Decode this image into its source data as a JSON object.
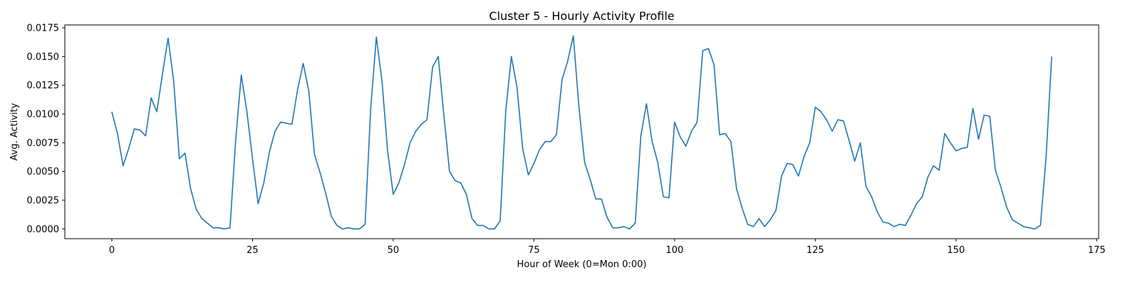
{
  "chart_data": {
    "type": "line",
    "title": "Cluster 5 - Hourly Activity Profile",
    "xlabel": "Hour of Week (0=Mon 0:00)",
    "ylabel": "Avg. Activity",
    "xlim": [
      -8.35,
      175.35
    ],
    "ylim": [
      -0.00085,
      0.01775
    ],
    "xticks": [
      0,
      25,
      50,
      75,
      100,
      125,
      150,
      175
    ],
    "xtick_labels": [
      "0",
      "25",
      "50",
      "75",
      "100",
      "125",
      "150",
      "175"
    ],
    "yticks": [
      0.0,
      0.0025,
      0.005,
      0.0075,
      0.01,
      0.0125,
      0.015,
      0.0175
    ],
    "ytick_labels": [
      "0.0000",
      "0.0025",
      "0.0050",
      "0.0075",
      "0.0100",
      "0.0125",
      "0.0150",
      "0.0175"
    ],
    "grid": false,
    "series": [
      {
        "color": "#1f77b4",
        "x_start": 0,
        "x_step": 1,
        "values": [
          0.0102,
          0.0083,
          0.0055,
          0.007,
          0.0087,
          0.0086,
          0.0081,
          0.0114,
          0.0102,
          0.0135,
          0.0166,
          0.0128,
          0.0061,
          0.0066,
          0.0035,
          0.0017,
          0.0009,
          0.0005,
          0.0001,
          0.0001,
          0.0,
          0.0001,
          0.0077,
          0.0134,
          0.0102,
          0.0061,
          0.0022,
          0.004,
          0.0067,
          0.0085,
          0.0093,
          0.0092,
          0.0091,
          0.0121,
          0.0144,
          0.012,
          0.0065,
          0.0049,
          0.0031,
          0.0011,
          0.0003,
          0.0,
          0.0001,
          0.0,
          0.0,
          0.0004,
          0.0105,
          0.0167,
          0.0129,
          0.0068,
          0.003,
          0.004,
          0.0056,
          0.0075,
          0.0085,
          0.0091,
          0.0095,
          0.0141,
          0.015,
          0.0099,
          0.005,
          0.0042,
          0.004,
          0.003,
          0.0009,
          0.0003,
          0.0003,
          0.0,
          0.0,
          0.0007,
          0.0103,
          0.015,
          0.0123,
          0.007,
          0.0047,
          0.0057,
          0.0069,
          0.0076,
          0.0076,
          0.0082,
          0.013,
          0.0146,
          0.0168,
          0.0106,
          0.0058,
          0.0043,
          0.0026,
          0.0026,
          0.001,
          0.0001,
          0.0001,
          0.0002,
          0.0,
          0.0005,
          0.0081,
          0.0109,
          0.0076,
          0.0058,
          0.0028,
          0.0027,
          0.0093,
          0.008,
          0.0072,
          0.0085,
          0.0093,
          0.0155,
          0.0157,
          0.0143,
          0.0082,
          0.0083,
          0.0076,
          0.0035,
          0.0018,
          0.0004,
          0.0002,
          0.0009,
          0.0002,
          0.0008,
          0.0016,
          0.0046,
          0.0057,
          0.0056,
          0.0046,
          0.0063,
          0.0075,
          0.0106,
          0.0102,
          0.0095,
          0.0085,
          0.0095,
          0.0094,
          0.0077,
          0.0059,
          0.0075,
          0.0037,
          0.0028,
          0.0015,
          0.0006,
          0.0005,
          0.0002,
          0.0004,
          0.0003,
          0.0012,
          0.0022,
          0.0028,
          0.0045,
          0.0055,
          0.0051,
          0.0083,
          0.0075,
          0.0068,
          0.007,
          0.0071,
          0.0105,
          0.0078,
          0.0099,
          0.0098,
          0.0051,
          0.0036,
          0.0019,
          0.0008,
          0.0005,
          0.0002,
          0.0001,
          0.0,
          0.0003,
          0.0062,
          0.015
        ]
      }
    ]
  }
}
